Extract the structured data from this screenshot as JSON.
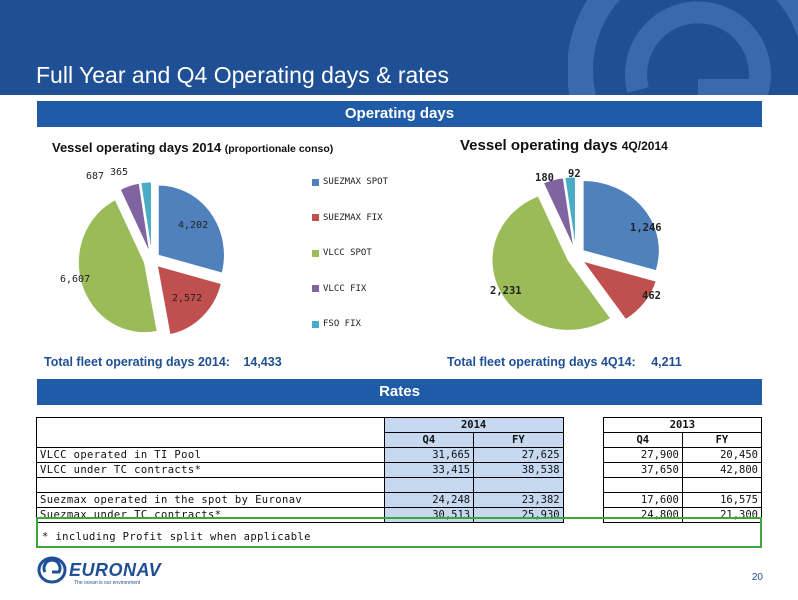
{
  "header": {
    "title": "Full Year and Q4 Operating days & rates"
  },
  "sections": {
    "operating_days": "Operating days",
    "rates": "Rates"
  },
  "charts": {
    "left": {
      "title": "Vessel operating days 2014",
      "subtitle": "(proportionale conso)"
    },
    "right": {
      "title": "Vessel operating days",
      "subtitle": "4Q/2014"
    }
  },
  "legend": [
    {
      "label": "SUEZMAX SPOT",
      "color": "#4f81bd"
    },
    {
      "label": "SUEZMAX FIX",
      "color": "#c0504d"
    },
    {
      "label": "VLCC SPOT",
      "color": "#9bbb59"
    },
    {
      "label": "VLCC FIX",
      "color": "#8064a2"
    },
    {
      "label": "FSO FIX",
      "color": "#4bacc6"
    }
  ],
  "chart_data": [
    {
      "type": "pie",
      "title": "Vessel operating days 2014 (proportionale conso)",
      "categories": [
        "SUEZMAX SPOT",
        "SUEZMAX FIX",
        "VLCC SPOT",
        "VLCC FIX",
        "FSO FIX"
      ],
      "values": [
        4202,
        2572,
        6607,
        687,
        365
      ],
      "value_labels": [
        "4,202",
        "2,572",
        "6,607",
        "687",
        "365"
      ],
      "colors": [
        "#4f81bd",
        "#c0504d",
        "#9bbb59",
        "#8064a2",
        "#4bacc6"
      ],
      "legend": "right"
    },
    {
      "type": "pie",
      "title": "Vessel operating days 4Q/2014",
      "categories": [
        "SUEZMAX SPOT",
        "SUEZMAX FIX",
        "VLCC SPOT",
        "VLCC FIX",
        "FSO FIX"
      ],
      "values": [
        1246,
        462,
        2231,
        180,
        92
      ],
      "value_labels": [
        "1,246",
        "462",
        "2,231",
        "180",
        "92"
      ],
      "colors": [
        "#4f81bd",
        "#c0504d",
        "#9bbb59",
        "#8064a2",
        "#4bacc6"
      ]
    }
  ],
  "totals": {
    "left_label": "Total fleet operating days 2014:",
    "left_value": "14,433",
    "right_label": "Total fleet operating days 4Q14:",
    "right_value": "4,211"
  },
  "rates_table": {
    "year_2014": "2014",
    "year_2013": "2013",
    "col_q4": "Q4",
    "col_fy": "FY",
    "rows": [
      {
        "label": "VLCC operated in TI Pool",
        "q4_2014": "31,665",
        "fy_2014": "27,625",
        "q4_2013": "27,900",
        "fy_2013": "20,450"
      },
      {
        "label": "VLCC under TC contracts*",
        "q4_2014": "33,415",
        "fy_2014": "38,538",
        "q4_2013": "37,650",
        "fy_2013": "42,800"
      },
      {
        "label": "Suezmax operated in the spot by Euronav",
        "q4_2014": "24,248",
        "fy_2014": "23,382",
        "q4_2013": "17,600",
        "fy_2013": "16,575"
      },
      {
        "label": "Suezmax under TC contracts*",
        "q4_2014": "30,513",
        "fy_2014": "25,930",
        "q4_2013": "24,800",
        "fy_2013": "21,300"
      }
    ],
    "footnote": "* including Profit split when applicable"
  },
  "footer": {
    "brand": "EURONAV",
    "tagline": "The ocean is our environment",
    "page_number": "20"
  }
}
